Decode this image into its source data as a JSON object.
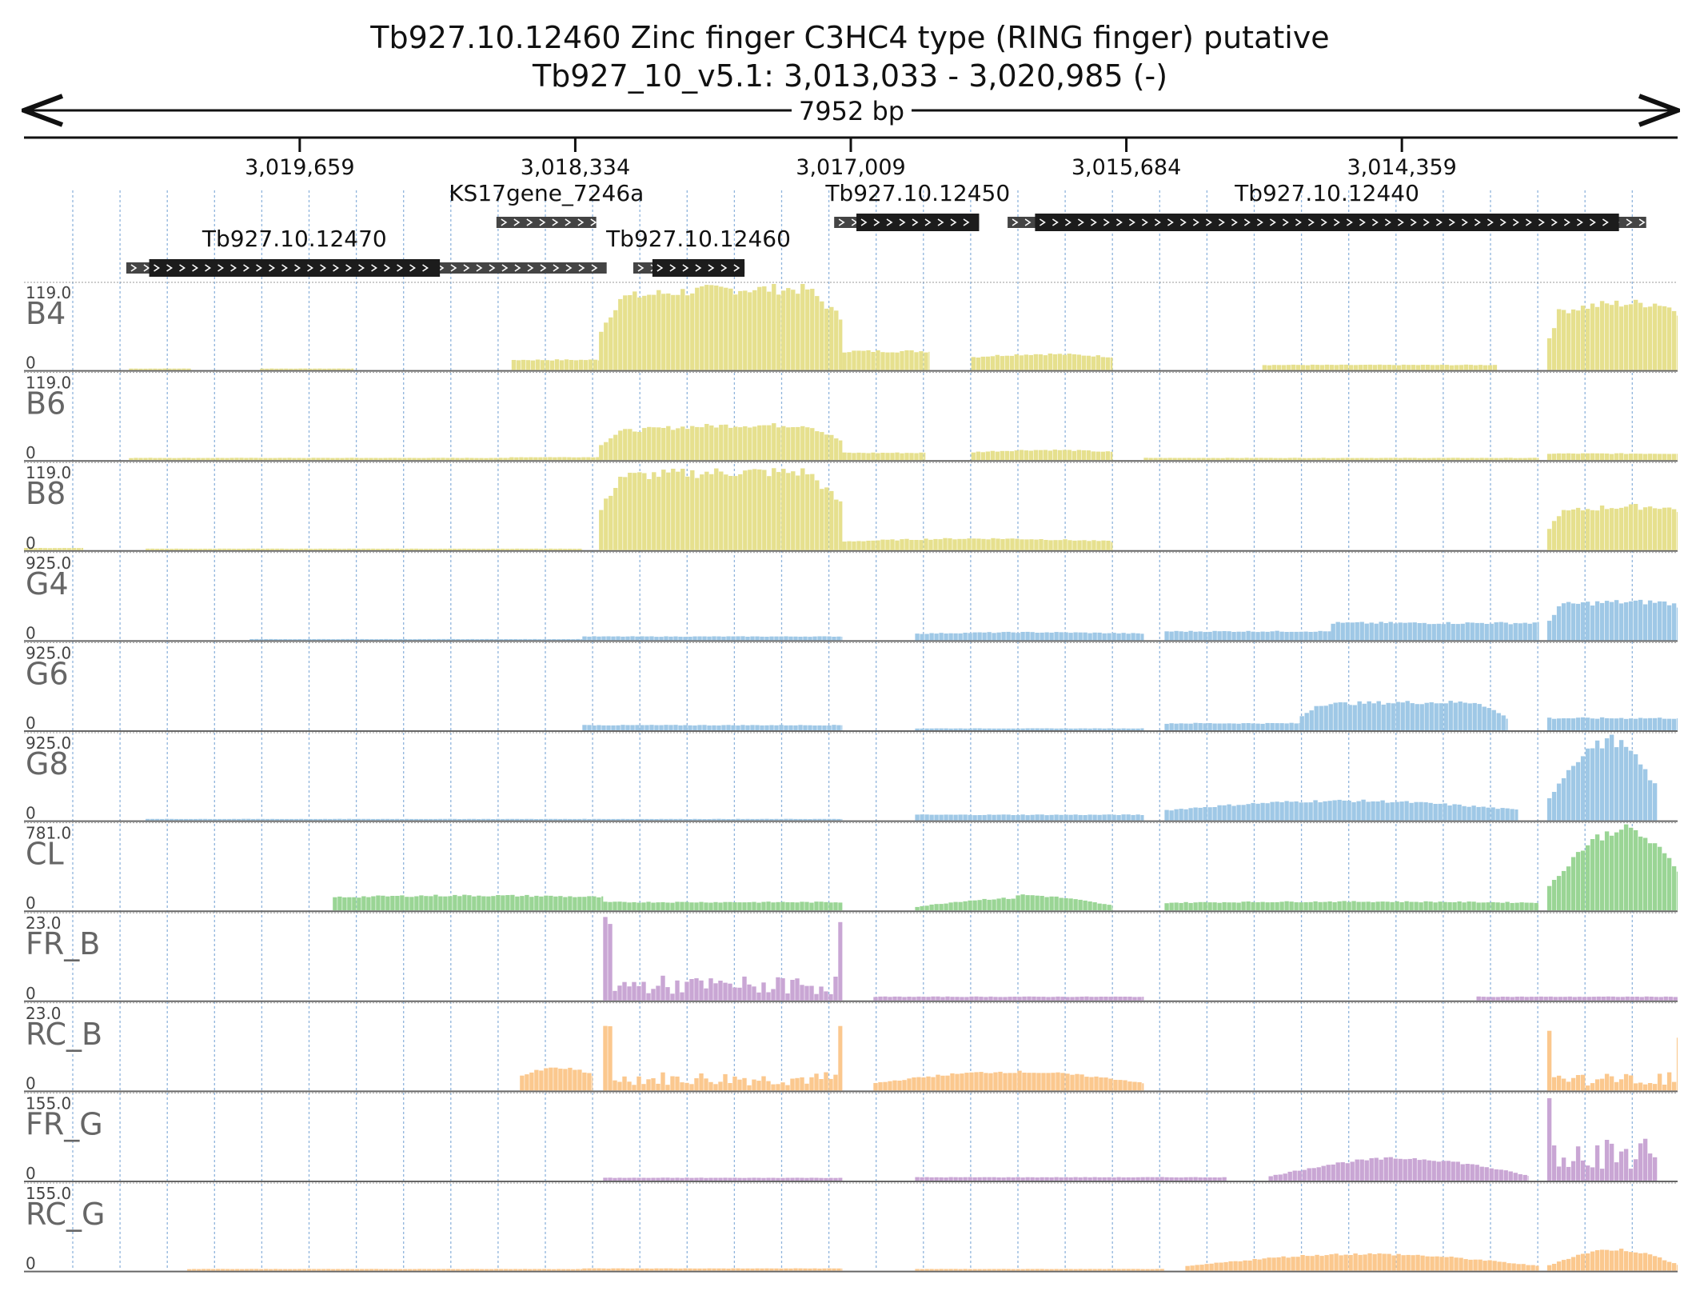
{
  "header": {
    "title": "Tb927.10.12460  Zinc finger  C3HC4 type (RING finger)  putative",
    "subtitle": "Tb927_10_v5.1: 3,013,033 - 3,020,985 (-)",
    "span_label": "7952 bp"
  },
  "colors": {
    "B": "#e6e08e",
    "G": "#9fc8e6",
    "CL": "#9ad595",
    "FR": "#c9a6d4",
    "RC": "#fbc88e",
    "gene_utr": "#444444",
    "gene_cds": "#1c1c1c",
    "grid_blue": "#8fb4dc"
  },
  "chart_data": {
    "type": "area",
    "title": "Tb927.10.12460  Zinc finger  C3HC4 type (RING finger)  putative",
    "region": {
      "chromosome": "Tb927_10_v5.1",
      "start": 3013033,
      "end": 3020985,
      "strand": "-",
      "length_label": "7952 bp"
    },
    "x_axis": {
      "orientation": "reversed",
      "min": 3013033,
      "max": 3020985,
      "ticks": [
        3019659,
        3018334,
        3017009,
        3015684,
        3014359
      ],
      "tick_labels": [
        "3,019,659",
        "3,018,334",
        "3,017,009",
        "3,015,684",
        "3,014,359"
      ]
    },
    "genes": [
      {
        "name": "KS17gene_7246a",
        "start": 3018233,
        "end": 3018713,
        "cds": null
      },
      {
        "name": "Tb927.10.12450",
        "start": 3016392,
        "end": 3017089,
        "cds": [
          3016392,
          3016982
        ]
      },
      {
        "name": "Tb927.10.12440",
        "start": 3013184,
        "end": 3016255,
        "cds": [
          3013315,
          3016123
        ]
      },
      {
        "name": "Tb927.10.12470",
        "start": 3018183,
        "end": 3020493,
        "cds": [
          3018985,
          3020383
        ]
      },
      {
        "name": "Tb927.10.12460",
        "start": 3017520,
        "end": 3018055,
        "cds": [
          3017520,
          3017963
        ]
      }
    ],
    "tracks": [
      {
        "name": "B4",
        "max_label": "119.0",
        "min_label": "0",
        "ylim": [
          0,
          119
        ],
        "color_key": "B",
        "segments": [
          {
            "start": 3020480,
            "end": 3020180,
            "level": 2
          },
          {
            "start": 3019850,
            "end": 3019400,
            "level": 2
          },
          {
            "start": 3018640,
            "end": 3018220,
            "level": 14
          },
          {
            "start": 3018220,
            "end": 3017050,
            "level": 100,
            "shape": "plateau",
            "peak": 112,
            "tail": 68
          },
          {
            "start": 3017050,
            "end": 3016630,
            "level": 26
          },
          {
            "start": 3016430,
            "end": 3015750,
            "level": 18,
            "peak": 22
          },
          {
            "start": 3015030,
            "end": 3013900,
            "level": 7
          },
          {
            "start": 3013660,
            "end": 3013033,
            "level": 82,
            "shape": "plateau",
            "peak": 92,
            "tail": 80
          }
        ]
      },
      {
        "name": "B6",
        "max_label": "119.0",
        "min_label": "0",
        "ylim": [
          0,
          119
        ],
        "color_key": "B",
        "segments": [
          {
            "start": 3020480,
            "end": 3018650,
            "level": 3
          },
          {
            "start": 3018650,
            "end": 3018220,
            "level": 4
          },
          {
            "start": 3018220,
            "end": 3017050,
            "level": 40,
            "shape": "plateau",
            "peak": 48,
            "tail": 25
          },
          {
            "start": 3017050,
            "end": 3016650,
            "level": 10
          },
          {
            "start": 3016430,
            "end": 3015750,
            "level": 11,
            "peak": 14
          },
          {
            "start": 3015600,
            "end": 3013700,
            "level": 3
          },
          {
            "start": 3013660,
            "end": 3013033,
            "level": 9
          }
        ]
      },
      {
        "name": "B8",
        "max_label": "119.0",
        "min_label": "0",
        "ylim": [
          0,
          119
        ],
        "color_key": "B",
        "segments": [
          {
            "start": 3020985,
            "end": 3020700,
            "level": 3
          },
          {
            "start": 3020400,
            "end": 3018300,
            "level": 2
          },
          {
            "start": 3018220,
            "end": 3017050,
            "level": 102,
            "shape": "plateau",
            "peak": 108,
            "tail": 60
          },
          {
            "start": 3017050,
            "end": 3015750,
            "level": 12,
            "peak": 16
          },
          {
            "start": 3013660,
            "end": 3013033,
            "level": 52,
            "shape": "plateau",
            "peak": 60,
            "tail": 55
          }
        ]
      },
      {
        "name": "G4",
        "max_label": "925.0",
        "min_label": "0",
        "ylim": [
          0,
          925
        ],
        "color_key": "G",
        "segments": [
          {
            "start": 3019900,
            "end": 3018300,
            "level": 12
          },
          {
            "start": 3018300,
            "end": 3017050,
            "level": 40
          },
          {
            "start": 3016700,
            "end": 3015600,
            "level": 70,
            "peak": 85
          },
          {
            "start": 3015500,
            "end": 3014700,
            "level": 95
          },
          {
            "start": 3014700,
            "end": 3013700,
            "level": 185
          },
          {
            "start": 3013660,
            "end": 3013033,
            "level": 380,
            "shape": "plateau",
            "peak": 410,
            "tail": 375
          }
        ]
      },
      {
        "name": "G6",
        "max_label": "925.0",
        "min_label": "0",
        "ylim": [
          0,
          925
        ],
        "color_key": "G",
        "segments": [
          {
            "start": 3018300,
            "end": 3017050,
            "level": 55
          },
          {
            "start": 3016700,
            "end": 3015600,
            "level": 20
          },
          {
            "start": 3015500,
            "end": 3014850,
            "level": 75
          },
          {
            "start": 3014850,
            "end": 3013850,
            "level": 280,
            "shape": "plateau",
            "peak": 300,
            "tail": 120
          },
          {
            "start": 3013660,
            "end": 3013033,
            "level": 130
          }
        ]
      },
      {
        "name": "G8",
        "max_label": "925.0",
        "min_label": "0",
        "ylim": [
          0,
          925
        ],
        "color_key": "G",
        "segments": [
          {
            "start": 3020400,
            "end": 3018300,
            "level": 15
          },
          {
            "start": 3018300,
            "end": 3017050,
            "level": 15
          },
          {
            "start": 3016700,
            "end": 3015600,
            "level": 60
          },
          {
            "start": 3015500,
            "end": 3013800,
            "level": 110,
            "peak": 210
          },
          {
            "start": 3013660,
            "end": 3013130,
            "level": 820,
            "shape": "hump",
            "peak": 880,
            "tail": 300
          }
        ]
      },
      {
        "name": "CL",
        "max_label": "781.0",
        "min_label": "0",
        "ylim": [
          0,
          781
        ],
        "color_key": "CL",
        "segments": [
          {
            "start": 3019500,
            "end": 3018200,
            "level": 120,
            "peak": 135
          },
          {
            "start": 3018200,
            "end": 3017050,
            "level": 75
          },
          {
            "start": 3016700,
            "end": 3015750,
            "level": 110,
            "shape": "hump",
            "peak": 140,
            "tail": 40
          },
          {
            "start": 3015500,
            "end": 3013700,
            "level": 70,
            "peak": 80
          },
          {
            "start": 3013660,
            "end": 3013033,
            "level": 700,
            "shape": "hump",
            "peak": 760,
            "tail": 360
          }
        ]
      },
      {
        "name": "FR_B",
        "max_label": "23.0",
        "min_label": "0",
        "ylim": [
          0,
          23
        ],
        "color_key": "FR",
        "segments": [
          {
            "start": 3018200,
            "end": 3017050,
            "level": 4,
            "shape": "edges",
            "peak": 22
          },
          {
            "start": 3016900,
            "end": 3015600,
            "level": 1
          },
          {
            "start": 3014000,
            "end": 3013033,
            "level": 1
          }
        ]
      },
      {
        "name": "RC_B",
        "max_label": "23.0",
        "min_label": "0",
        "ylim": [
          0,
          23
        ],
        "color_key": "RC",
        "segments": [
          {
            "start": 3018600,
            "end": 3018250,
            "level": 4,
            "peak": 6
          },
          {
            "start": 3018200,
            "end": 3017050,
            "level": 3,
            "shape": "edges",
            "peak": 17
          },
          {
            "start": 3016900,
            "end": 3015600,
            "level": 2,
            "peak": 5
          },
          {
            "start": 3013660,
            "end": 3013033,
            "level": 3,
            "shape": "edges",
            "peak": 15
          }
        ]
      },
      {
        "name": "FR_G",
        "max_label": "155.0",
        "min_label": "0",
        "ylim": [
          0,
          155
        ],
        "color_key": "FR",
        "segments": [
          {
            "start": 3018200,
            "end": 3017050,
            "level": 5
          },
          {
            "start": 3016700,
            "end": 3015200,
            "level": 6
          },
          {
            "start": 3015000,
            "end": 3013750,
            "level": 8,
            "peak": 40
          },
          {
            "start": 3013660,
            "end": 3013130,
            "level": 50,
            "shape": "edges",
            "peak": 150
          }
        ]
      },
      {
        "name": "RC_G",
        "max_label": "155.0",
        "min_label": "0",
        "ylim": [
          0,
          155
        ],
        "color_key": "RC",
        "segments": [
          {
            "start": 3020200,
            "end": 3018300,
            "level": 3
          },
          {
            "start": 3018300,
            "end": 3017050,
            "level": 4
          },
          {
            "start": 3016700,
            "end": 3015500,
            "level": 3
          },
          {
            "start": 3015400,
            "end": 3013700,
            "level": 8,
            "peak": 30
          },
          {
            "start": 3013660,
            "end": 3013033,
            "level": 10,
            "peak": 38
          }
        ]
      }
    ]
  }
}
